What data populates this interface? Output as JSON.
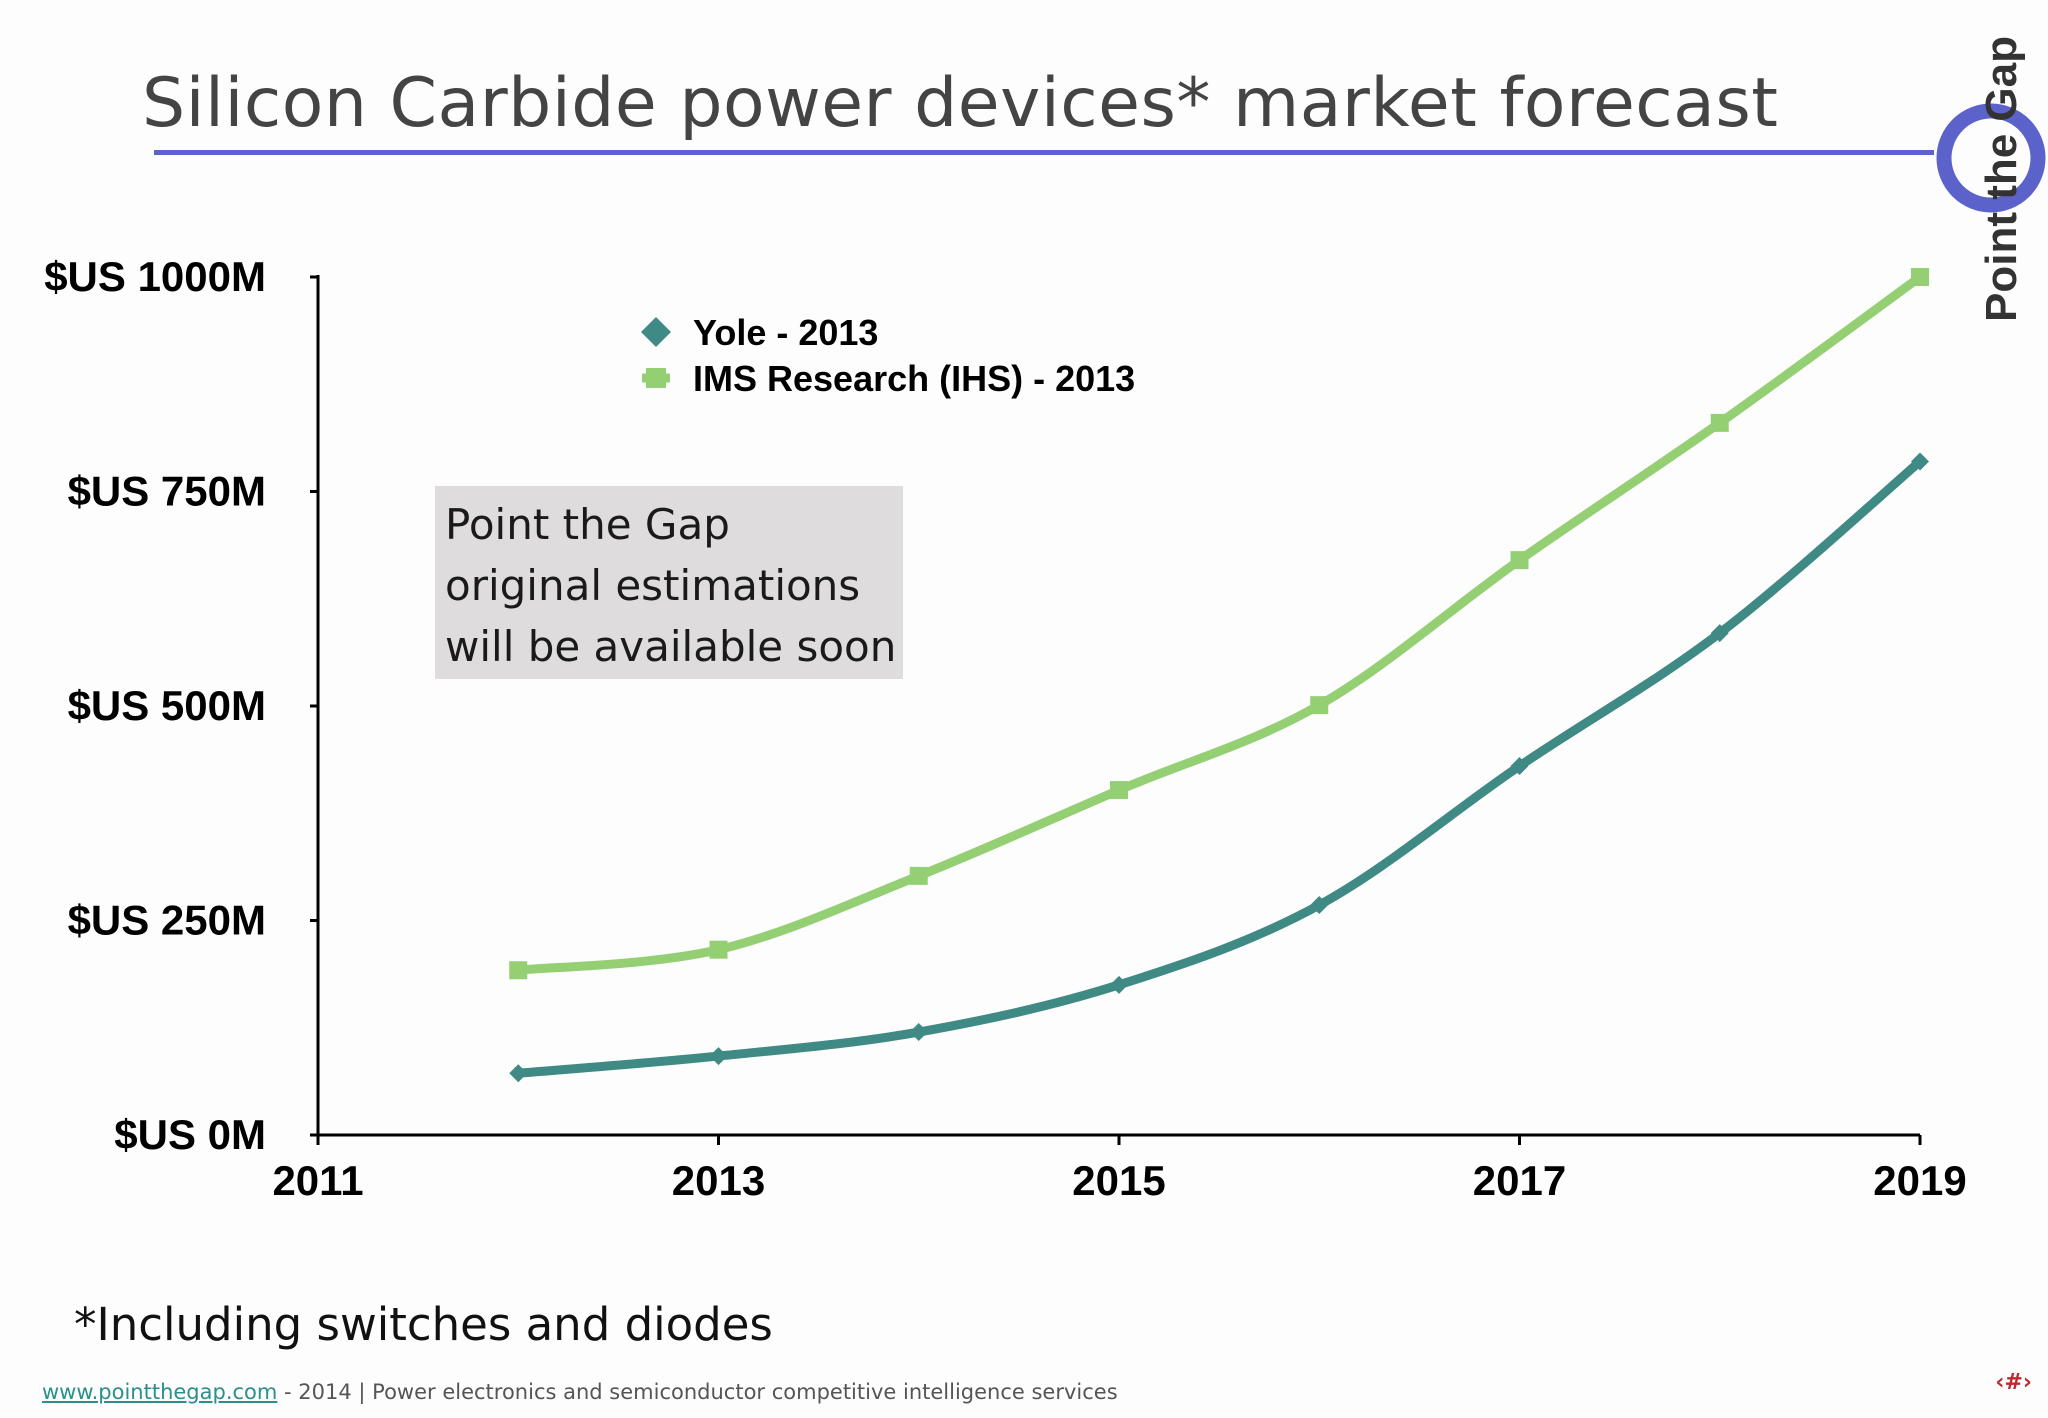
{
  "slide": {
    "title": "Silicon Carbide power devices* market forecast",
    "note": "Point the Gap original estimations will be available soon",
    "footnote": "*Including switches and diodes",
    "footer_link": "www.pointthegap.com",
    "footer_text": " - 2014 | Power electronics and semiconductor competitive intelligence services",
    "page_number": "‹#›",
    "logo_text": "Point the Gap",
    "logo_color": "#5b63cb",
    "rule_color": "#5b63cb"
  },
  "chart_data": {
    "type": "line",
    "title": "Silicon Carbide power devices* market forecast",
    "xlabel": "",
    "ylabel": "",
    "xlim": [
      2011,
      2019
    ],
    "ylim": [
      0,
      1000
    ],
    "x_ticks": [
      "2011",
      "2013",
      "2015",
      "2017",
      "2019"
    ],
    "y_ticks": [
      "$US 0M",
      "$US 250M",
      "$US 500M",
      "$US 750M",
      "$US 1000M"
    ],
    "legend_position": "top-left",
    "series": [
      {
        "name": "Yole - 2013",
        "marker": "diamond",
        "color": "#3f8a85",
        "x": [
          2012,
          2013,
          2014,
          2015,
          2016,
          2017,
          2018,
          2019
        ],
        "values": [
          72,
          92,
          120,
          175,
          268,
          430,
          585,
          785
        ]
      },
      {
        "name": "IMS Research (IHS) - 2013",
        "marker": "square",
        "color": "#94cf74",
        "x": [
          2012,
          2013,
          2014,
          2015,
          2016,
          2017,
          2018,
          2019
        ],
        "values": [
          192,
          216,
          302,
          402,
          501,
          670,
          830,
          1000
        ]
      }
    ]
  }
}
